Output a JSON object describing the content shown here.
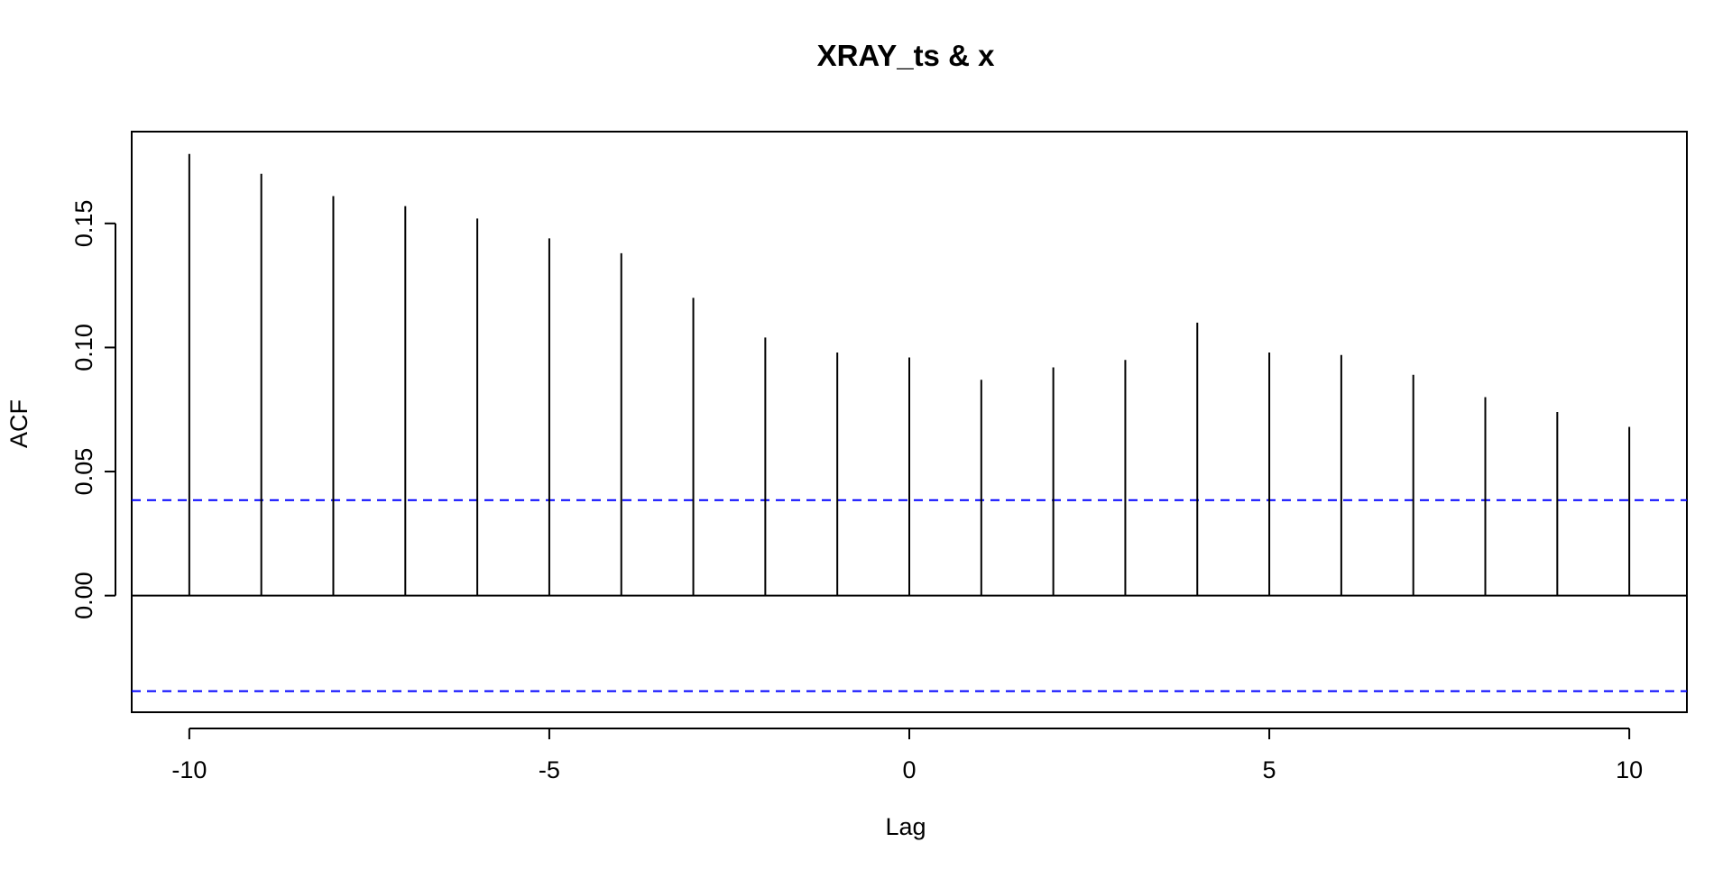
{
  "chart_data": {
    "type": "bar",
    "title": "XRAY_ts & x",
    "xlabel": "Lag",
    "ylabel": "ACF",
    "x": [
      -10,
      -9,
      -8,
      -7,
      -6,
      -5,
      -4,
      -3,
      -2,
      -1,
      0,
      1,
      2,
      3,
      4,
      5,
      6,
      7,
      8,
      9,
      10
    ],
    "values": [
      0.178,
      0.17,
      0.161,
      0.157,
      0.152,
      0.144,
      0.138,
      0.12,
      0.104,
      0.098,
      0.096,
      0.087,
      0.092,
      0.095,
      0.11,
      0.098,
      0.097,
      0.089,
      0.08,
      0.074,
      0.068
    ],
    "xlim": [
      -10.8,
      10.8
    ],
    "ylim": [
      -0.047,
      0.187
    ],
    "xticks": [
      -10,
      -5,
      0,
      5,
      10
    ],
    "xtick_labels": [
      "-10",
      "-5",
      "0",
      "5",
      "10"
    ],
    "yticks": [
      0.0,
      0.05,
      0.1,
      0.15
    ],
    "ytick_labels": [
      "0.00",
      "0.05",
      "0.10",
      "0.15"
    ],
    "confidence_bounds": [
      0.0385,
      -0.0385
    ],
    "zero_line": 0,
    "colors": {
      "spikes": "#000000",
      "confidence": "#0000ff",
      "axes": "#000000"
    },
    "grid": false,
    "legend": "none"
  }
}
